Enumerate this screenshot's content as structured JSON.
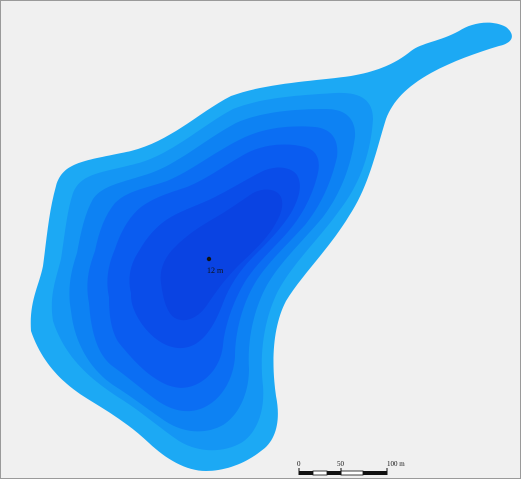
{
  "map": {
    "depth_label": "12 m",
    "scale_bar": {
      "labels": [
        "0",
        "50",
        "100 m"
      ],
      "values": [
        0,
        50,
        100
      ],
      "unit": "m"
    },
    "colors": {
      "background": "#f0f0f0",
      "depth_levels": [
        "#1ca9f4",
        "#1496f4",
        "#0d82f3",
        "#0b6ef3",
        "#0a5cf0",
        "#0a4de9",
        "#0a43e2"
      ],
      "depth_point": "#111111"
    }
  }
}
